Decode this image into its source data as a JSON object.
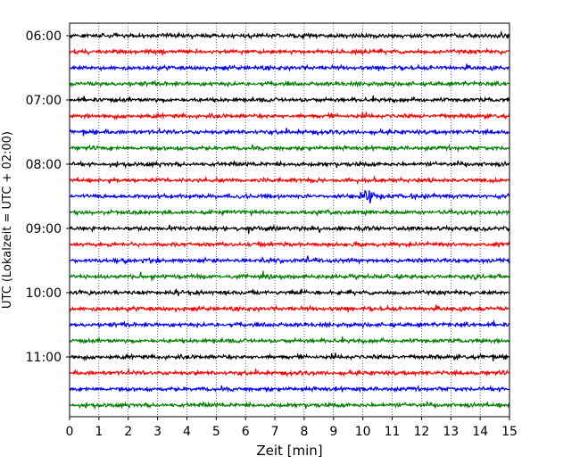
{
  "chart_data": {
    "type": "line",
    "subtype": "helicorder",
    "xlabel": "Zeit  [min]",
    "ylabel": "UTC (Lokalzeit = UTC + 02:00)",
    "xlim": [
      0,
      15
    ],
    "x_ticks": [
      "0",
      "1",
      "2",
      "3",
      "4",
      "5",
      "6",
      "7",
      "8",
      "9",
      "10",
      "11",
      "12",
      "13",
      "14",
      "15"
    ],
    "y_ticks": [
      "06:00",
      "07:00",
      "08:00",
      "09:00",
      "10:00",
      "11:00"
    ],
    "grid": "vertical dotted at every minute",
    "trace_interval_minutes": 15,
    "trace_colors": [
      "#000000",
      "#ff0000",
      "#0000ff",
      "#008000"
    ],
    "traces": [
      {
        "start": "06:00",
        "color": "#000000"
      },
      {
        "start": "06:15",
        "color": "#ff0000"
      },
      {
        "start": "06:30",
        "color": "#0000ff"
      },
      {
        "start": "06:45",
        "color": "#008000"
      },
      {
        "start": "07:00",
        "color": "#000000"
      },
      {
        "start": "07:15",
        "color": "#ff0000"
      },
      {
        "start": "07:30",
        "color": "#0000ff"
      },
      {
        "start": "07:45",
        "color": "#008000"
      },
      {
        "start": "08:00",
        "color": "#000000"
      },
      {
        "start": "08:15",
        "color": "#ff0000"
      },
      {
        "start": "08:30",
        "color": "#0000ff"
      },
      {
        "start": "08:45",
        "color": "#008000"
      },
      {
        "start": "09:00",
        "color": "#000000"
      },
      {
        "start": "09:15",
        "color": "#ff0000"
      },
      {
        "start": "09:30",
        "color": "#0000ff"
      },
      {
        "start": "09:45",
        "color": "#008000"
      },
      {
        "start": "10:00",
        "color": "#000000"
      },
      {
        "start": "10:15",
        "color": "#ff0000"
      },
      {
        "start": "10:30",
        "color": "#0000ff"
      },
      {
        "start": "10:45",
        "color": "#008000"
      },
      {
        "start": "11:00",
        "color": "#000000"
      },
      {
        "start": "11:15",
        "color": "#ff0000"
      },
      {
        "start": "11:30",
        "color": "#0000ff"
      },
      {
        "start": "11:45",
        "color": "#008000"
      }
    ],
    "events": [
      {
        "trace_start": "08:30",
        "x_start_min": 9.9,
        "x_end_min": 10.8,
        "note": "earthquake signal on blue trace"
      }
    ]
  }
}
